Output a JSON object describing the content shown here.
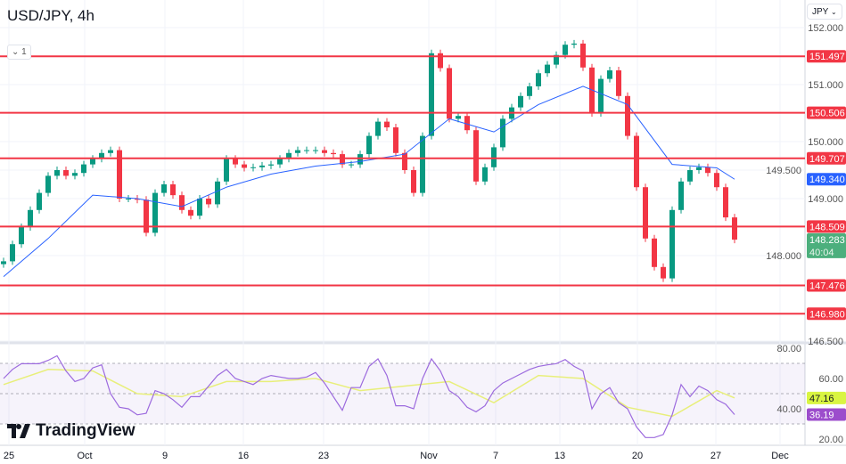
{
  "header": {
    "title": "USD/JPY, 4h",
    "collapse_count": "1",
    "currency": "JPY"
  },
  "branding": {
    "logo_text": "TradingView"
  },
  "colors": {
    "level_line": "#f23645",
    "ma": "#2962ff",
    "up": "#089981",
    "down": "#f23645",
    "rsi": "#9c6ade",
    "rsi_ma": "#e8ef7a",
    "rsi_band": "#7e57c2",
    "last_price": "#4caf7d",
    "rsi_badge": "#9c4dcc",
    "rsi_ma_badge": "#d9f542"
  },
  "chart_data": [
    {
      "type": "candlestick",
      "title": "USD/JPY, 4h",
      "ylim": [
        146.3,
        152.1
      ],
      "price_ticks": [
        "152.000",
        "151.000",
        "150.000",
        "149.500",
        "149.000",
        "148.000",
        "146.500"
      ],
      "x_ticks": [
        "25",
        "Oct",
        "9",
        "16",
        "23",
        "Nov",
        "7",
        "13",
        "20",
        "27",
        "Dec"
      ],
      "closes": [
        147.9,
        148.2,
        148.5,
        148.8,
        149.1,
        149.4,
        149.5,
        149.4,
        149.45,
        149.6,
        149.7,
        149.8,
        149.85,
        149.0,
        149.0,
        148.98,
        148.4,
        149.1,
        149.25,
        149.06,
        148.8,
        148.7,
        149.0,
        148.9,
        149.3,
        149.7,
        149.6,
        149.54,
        149.55,
        149.58,
        149.6,
        149.7,
        149.8,
        149.85,
        149.85,
        149.85,
        149.8,
        149.78,
        149.6,
        149.6,
        149.78,
        150.1,
        150.35,
        150.25,
        149.8,
        149.5,
        149.1,
        150.1,
        151.55,
        151.29,
        150.4,
        150.45,
        150.2,
        149.3,
        149.55,
        149.9,
        150.4,
        150.6,
        150.8,
        150.97,
        151.2,
        151.35,
        151.52,
        151.7,
        151.72,
        151.3,
        150.5,
        151.1,
        151.25,
        150.8,
        150.1,
        149.2,
        148.3,
        147.8,
        147.6,
        148.8,
        149.3,
        149.5,
        149.55,
        149.45,
        149.2,
        148.67,
        148.28
      ],
      "moving_average_every_5_bars": [
        147.63,
        148.3,
        149.06,
        149.0,
        148.86,
        149.2,
        149.43,
        149.57,
        149.65,
        149.78,
        150.4,
        150.17,
        150.65,
        150.97,
        150.65,
        149.6,
        149.54,
        149.34
      ],
      "levels": [
        "151.497",
        "150.506",
        "149.707",
        "148.509",
        "147.476",
        "146.980"
      ],
      "ma_value": "149.340",
      "last_price": "148.283",
      "countdown": "40:04"
    },
    {
      "type": "line",
      "ylim": [
        15,
        85
      ],
      "ticks": [
        "80.00",
        "60.00",
        "40.00",
        "20.00"
      ],
      "bands": [
        70,
        50,
        30
      ],
      "rsi": [
        60,
        66,
        69.8,
        69.8,
        69.8,
        72,
        75,
        65,
        58,
        60,
        67,
        69,
        50,
        41,
        40,
        36,
        37,
        52,
        50,
        46,
        41,
        48,
        48,
        55,
        62,
        66,
        60,
        58,
        56,
        60,
        62,
        61,
        60,
        60,
        61,
        64,
        57,
        48,
        39,
        54,
        54,
        68,
        73,
        62,
        42,
        42,
        40,
        60,
        73,
        65,
        52,
        48,
        41,
        38,
        42,
        52,
        57,
        60,
        63,
        66,
        68,
        69,
        69.8,
        72.5,
        68,
        65,
        40,
        50,
        54,
        44,
        40,
        28,
        21,
        21,
        23,
        36,
        56,
        48,
        55,
        52,
        46,
        43,
        36.19
      ],
      "rsi_ma_every_5_bars": [
        56,
        66,
        65,
        50,
        48,
        58,
        58,
        60,
        52,
        55,
        58,
        44,
        62,
        60,
        41,
        35,
        52,
        47.16
      ],
      "rsi_value": "36.19",
      "rsi_ma_value": "47.16"
    }
  ]
}
